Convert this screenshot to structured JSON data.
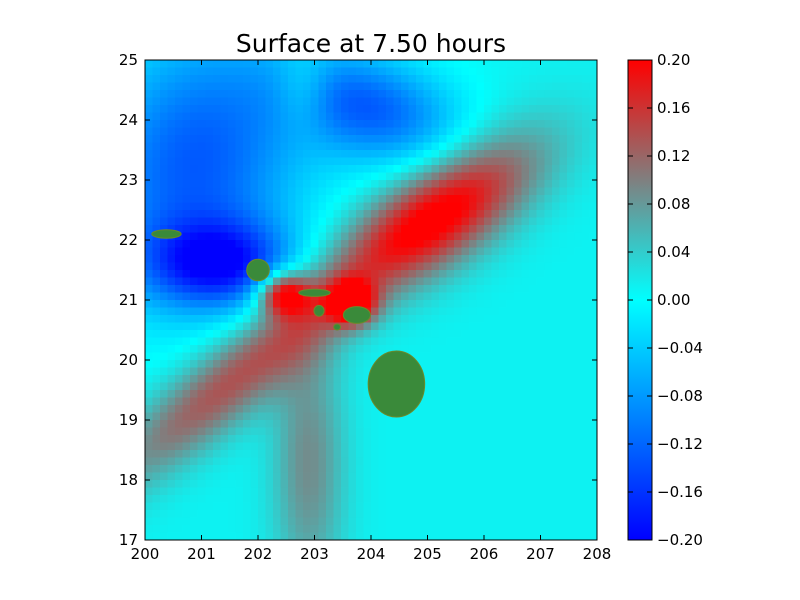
{
  "chart_data": {
    "type": "heatmap",
    "title": "Surface at 7.50 hours",
    "xlabel": "",
    "ylabel": "",
    "xlim": [
      200,
      208
    ],
    "ylim": [
      17,
      25
    ],
    "x_ticks": [
      "200",
      "201",
      "202",
      "203",
      "204",
      "205",
      "206",
      "207",
      "208"
    ],
    "y_ticks": [
      "17",
      "18",
      "19",
      "20",
      "21",
      "22",
      "23",
      "24",
      "25"
    ],
    "grid": false,
    "colorbar": {
      "range": [
        -0.2,
        0.2
      ],
      "tick_labels": [
        "0.20",
        "0.16",
        "0.12",
        "0.08",
        "0.04",
        "0.00",
        "−0.04",
        "−0.08",
        "−0.12",
        "−0.16",
        "−0.20"
      ],
      "tick_values": [
        0.2,
        0.16,
        0.12,
        0.08,
        0.04,
        0.0,
        -0.04,
        -0.08,
        -0.12,
        -0.16,
        -0.2
      ],
      "colors": [
        "#0000ff",
        "#00ffff",
        "#ff0000"
      ]
    },
    "land_color": "#3a8a3a",
    "features": [
      {
        "name": "red lobe NE",
        "cx": 205.2,
        "cy": 22.4,
        "sx": 1.4,
        "sy": 0.55,
        "angle": 32,
        "value": 0.2
      },
      {
        "name": "red SW band",
        "cx": 201.6,
        "cy": 19.7,
        "sx": 2.0,
        "sy": 0.45,
        "angle": 38,
        "value": 0.13
      },
      {
        "name": "red core Oahu",
        "cx": 202.45,
        "cy": 21.1,
        "sx": 0.32,
        "sy": 0.25,
        "angle": 0,
        "value": 0.2
      },
      {
        "name": "red core Maui",
        "cx": 203.65,
        "cy": 20.95,
        "sx": 0.3,
        "sy": 0.25,
        "angle": 0,
        "value": 0.2
      },
      {
        "name": "grey vertical band",
        "cx": 202.9,
        "cy": 18.3,
        "sx": 0.45,
        "sy": 1.6,
        "angle": 0,
        "value": 0.08
      },
      {
        "name": "blue NW",
        "cx": 200.9,
        "cy": 23.3,
        "sx": 1.3,
        "sy": 1.6,
        "angle": -25,
        "value": -0.14
      },
      {
        "name": "blue west",
        "cx": 201.3,
        "cy": 21.6,
        "sx": 0.9,
        "sy": 0.5,
        "angle": 0,
        "value": -0.17
      },
      {
        "name": "blue north",
        "cx": 204.0,
        "cy": 24.2,
        "sx": 1.1,
        "sy": 0.6,
        "angle": -15,
        "value": -0.13
      },
      {
        "name": "grey top",
        "cx": 202.8,
        "cy": 24.5,
        "sx": 0.35,
        "sy": 0.5,
        "angle": 0,
        "value": 0.05
      }
    ],
    "islands": [
      {
        "name": "Niihau-Kauai",
        "cx": 200.38,
        "cy": 22.1,
        "rx": 0.26,
        "ry": 0.07
      },
      {
        "name": "Oahu",
        "cx": 202.0,
        "cy": 21.5,
        "rx": 0.2,
        "ry": 0.18
      },
      {
        "name": "Molokai",
        "cx": 203.0,
        "cy": 21.12,
        "rx": 0.28,
        "ry": 0.06
      },
      {
        "name": "Lanai",
        "cx": 203.08,
        "cy": 20.82,
        "rx": 0.09,
        "ry": 0.09
      },
      {
        "name": "Kahoolawe",
        "cx": 203.4,
        "cy": 20.55,
        "rx": 0.06,
        "ry": 0.05
      },
      {
        "name": "Maui",
        "cx": 203.75,
        "cy": 20.75,
        "rx": 0.24,
        "ry": 0.14
      },
      {
        "name": "Hawaii",
        "cx": 204.45,
        "cy": 19.6,
        "rx": 0.5,
        "ry": 0.55
      }
    ]
  }
}
